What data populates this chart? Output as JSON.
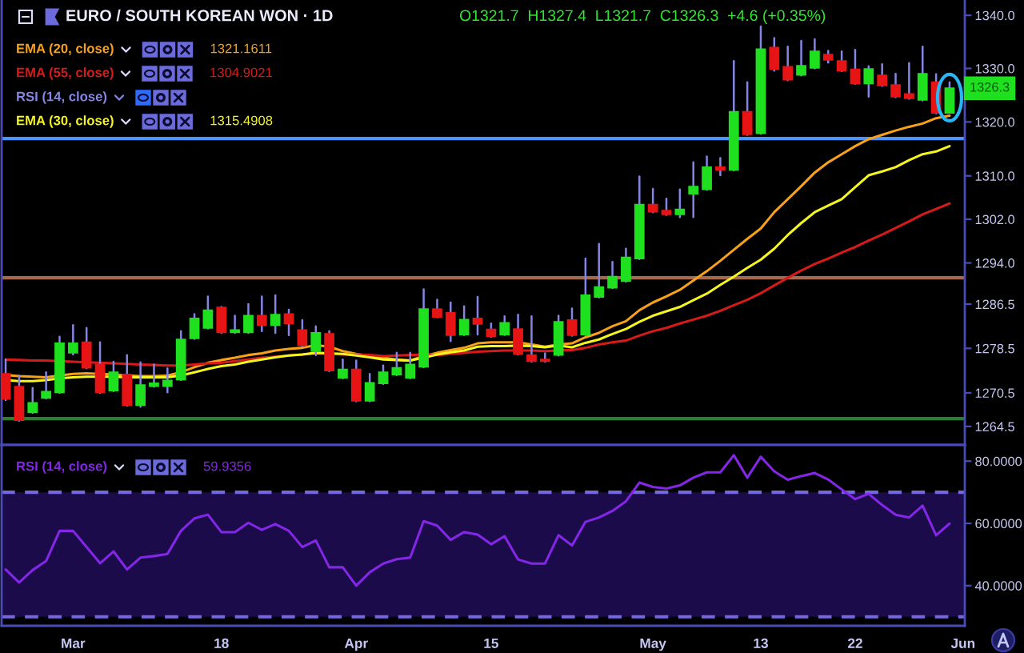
{
  "chart_data": [
    {
      "type": "candlestick",
      "title": "EURO / SOUTH KOREAN WON · 1D",
      "subtitle": "O1321.7  H1327.4  L1321.7  C1326.3  +4.6 (+0.35%)",
      "categories": [
        null,
        null,
        null,
        null,
        null,
        null,
        null,
        null,
        null,
        null,
        null,
        null,
        null,
        null,
        null,
        null,
        null,
        null,
        null,
        null,
        null,
        null,
        null,
        null,
        null,
        null,
        null,
        null,
        null,
        null,
        null,
        null,
        null,
        null,
        null,
        null,
        null,
        null,
        null,
        null,
        null,
        null,
        null,
        null,
        null,
        null,
        null,
        null,
        null,
        null,
        null,
        null,
        null,
        null,
        null,
        null,
        null,
        null,
        null,
        null,
        null,
        null,
        null,
        null,
        null,
        null,
        null,
        null,
        null,
        null,
        null,
        null
      ],
      "ohlc": [
        [
          1273.9,
          1276.5,
          1269.2,
          1269.4
        ],
        [
          1271.6,
          1273.6,
          1265.5,
          1265.6
        ],
        [
          1267.0,
          1271.4,
          1266.9,
          1268.7
        ],
        [
          1269.6,
          1274.2,
          1269.5,
          1270.7
        ],
        [
          1270.6,
          1280.6,
          1270.5,
          1279.4
        ],
        [
          1277.7,
          1282.7,
          1277.4,
          1279.4
        ],
        [
          1279.6,
          1282.2,
          1274.9,
          1275.0
        ],
        [
          1275.6,
          1279.6,
          1270.5,
          1270.6
        ],
        [
          1270.9,
          1276.1,
          1270.8,
          1274.2
        ],
        [
          1273.8,
          1277.3,
          1268.2,
          1268.3
        ],
        [
          1268.3,
          1276.0,
          1268.0,
          1271.9
        ],
        [
          1271.7,
          1275.6,
          1271.6,
          1272.2
        ],
        [
          1271.7,
          1274.9,
          1270.6,
          1272.7
        ],
        [
          1272.9,
          1281.6,
          1272.8,
          1280.1
        ],
        [
          1280.3,
          1284.7,
          1280.2,
          1283.9
        ],
        [
          1282.2,
          1287.9,
          1282.1,
          1285.4
        ],
        [
          1285.9,
          1286.0,
          1281.3,
          1281.4
        ],
        [
          1281.4,
          1284.4,
          1281.3,
          1281.8
        ],
        [
          1281.4,
          1286.5,
          1281.3,
          1284.4
        ],
        [
          1284.4,
          1287.9,
          1281.6,
          1282.7
        ],
        [
          1282.7,
          1288.1,
          1281.3,
          1284.6
        ],
        [
          1284.7,
          1285.5,
          1280.9,
          1283.0
        ],
        [
          1281.8,
          1283.6,
          1279.0,
          1279.1
        ],
        [
          1278.0,
          1282.5,
          1277.3,
          1281.3
        ],
        [
          1281.1,
          1281.6,
          1274.4,
          1274.5
        ],
        [
          1273.2,
          1276.5,
          1273.1,
          1274.7
        ],
        [
          1274.7,
          1276.3,
          1269.0,
          1269.1
        ],
        [
          1269.1,
          1273.9,
          1269.0,
          1272.3
        ],
        [
          1272.2,
          1275.4,
          1272.1,
          1274.2
        ],
        [
          1273.8,
          1277.7,
          1273.7,
          1275.0
        ],
        [
          1273.2,
          1277.7,
          1273.1,
          1275.6
        ],
        [
          1275.2,
          1289.2,
          1275.1,
          1285.6
        ],
        [
          1285.6,
          1287.3,
          1284.1,
          1284.2
        ],
        [
          1284.9,
          1286.8,
          1279.8,
          1280.9
        ],
        [
          1281.0,
          1286.1,
          1280.9,
          1283.7
        ],
        [
          1283.9,
          1287.8,
          1281.0,
          1282.9
        ],
        [
          1281.9,
          1283.0,
          1280.6,
          1280.7
        ],
        [
          1281.0,
          1284.3,
          1280.9,
          1283.1
        ],
        [
          1282.0,
          1284.6,
          1277.4,
          1277.5
        ],
        [
          1277.3,
          1284.3,
          1276.1,
          1276.2
        ],
        [
          1276.5,
          1277.6,
          1276.1,
          1276.2
        ],
        [
          1277.3,
          1284.4,
          1277.2,
          1283.3
        ],
        [
          1283.6,
          1285.7,
          1280.8,
          1280.9
        ],
        [
          1281.0,
          1294.8,
          1280.9,
          1288.1
        ],
        [
          1287.8,
          1297.5,
          1287.7,
          1289.6
        ],
        [
          1289.5,
          1294.2,
          1289.4,
          1291.5
        ],
        [
          1290.7,
          1296.6,
          1290.6,
          1295.0
        ],
        [
          1294.8,
          1309.9,
          1294.7,
          1304.7
        ],
        [
          1304.7,
          1307.6,
          1303.3,
          1303.4
        ],
        [
          1303.6,
          1305.8,
          1302.8,
          1302.9
        ],
        [
          1302.9,
          1307.5,
          1302.4,
          1303.8
        ],
        [
          1306.7,
          1312.5,
          1302.4,
          1308.0
        ],
        [
          1307.5,
          1313.6,
          1307.4,
          1311.6
        ],
        [
          1311.6,
          1313.3,
          1310.1,
          1311.1
        ],
        [
          1311.1,
          1331.4,
          1311.0,
          1321.9
        ],
        [
          1321.9,
          1327.4,
          1317.6,
          1317.7
        ],
        [
          1317.9,
          1337.9,
          1317.8,
          1333.6
        ],
        [
          1333.9,
          1335.7,
          1329.6,
          1329.9
        ],
        [
          1330.3,
          1334.1,
          1327.8,
          1327.9
        ],
        [
          1328.8,
          1335.2,
          1328.7,
          1330.5
        ],
        [
          1330.1,
          1335.5,
          1330.0,
          1333.2
        ],
        [
          1332.6,
          1333.3,
          1331.1,
          1331.6
        ],
        [
          1331.4,
          1333.2,
          1329.5,
          1329.6
        ],
        [
          1329.8,
          1333.5,
          1327.1,
          1327.2
        ],
        [
          1327.2,
          1330.4,
          1324.7,
          1329.9
        ],
        [
          1328.7,
          1330.8,
          1326.7,
          1326.8
        ],
        [
          1326.9,
          1329.0,
          1324.6,
          1324.7
        ],
        [
          1325.2,
          1331.0,
          1324.3,
          1324.4
        ],
        [
          1324.1,
          1334.1,
          1324.0,
          1329.0
        ],
        [
          1327.4,
          1328.9,
          1321.6,
          1321.7
        ],
        [
          1321.7,
          1327.4,
          1321.7,
          1326.3
        ],
        null
      ],
      "color": "#8585e6",
      "colors": [
        "#e61414",
        "#e61414",
        "#1fe01f",
        "#1fe01f",
        "#1fe01f",
        "#1fe01f",
        "#e61414",
        "#e61414",
        "#1fe01f",
        "#e61414",
        "#1fe01f",
        "#1fe01f",
        "#1fe01f",
        "#1fe01f",
        "#1fe01f",
        "#1fe01f",
        "#e61414",
        "#1fe01f",
        "#1fe01f",
        "#e61414",
        "#1fe01f",
        "#e61414",
        "#e61414",
        "#1fe01f",
        "#e61414",
        "#1fe01f",
        "#e61414",
        "#1fe01f",
        "#1fe01f",
        "#1fe01f",
        "#1fe01f",
        "#1fe01f",
        "#e61414",
        "#e61414",
        "#1fe01f",
        "#e61414",
        "#e61414",
        "#1fe01f",
        "#e61414",
        "#e61414",
        "#e61414",
        "#1fe01f",
        "#e61414",
        "#1fe01f",
        "#1fe01f",
        "#1fe01f",
        "#1fe01f",
        "#1fe01f",
        "#e61414",
        "#e61414",
        "#1fe01f",
        "#1fe01f",
        "#1fe01f",
        "#e61414",
        "#1fe01f",
        "#e61414",
        "#1fe01f",
        "#e61414",
        "#e61414",
        "#1fe01f",
        "#1fe01f",
        "#e61414",
        "#e61414",
        "#e61414",
        "#1fe01f",
        "#e61414",
        "#e61414",
        "#e61414",
        "#1fe01f",
        "#e61414",
        "#1fe01f",
        null
      ],
      "series": [
        {
          "name": "EMA (20, close)",
          "type": "line",
          "color": "#f7a11a",
          "values": [
            1273.7,
            1273.5,
            1273.4,
            1273.3,
            1273.6,
            1273.9,
            1274.0,
            1273.9,
            1273.8,
            1273.6,
            1273.5,
            1273.5,
            1273.6,
            1274.2,
            1275.1,
            1275.9,
            1276.4,
            1276.8,
            1277.3,
            1277.6,
            1278.1,
            1278.4,
            1278.6,
            1279.1,
            1278.8,
            1278.0,
            1277.5,
            1277.1,
            1276.8,
            1276.5,
            1276.3,
            1277.1,
            1277.7,
            1278.2,
            1278.6,
            1279.4,
            1279.6,
            1279.6,
            1279.6,
            1279.2,
            1278.8,
            1279.2,
            1279.4,
            1280.5,
            1281.3,
            1282.5,
            1283.4,
            1285.4,
            1286.8,
            1287.9,
            1289.1,
            1290.8,
            1292.5,
            1294.4,
            1296.4,
            1298.4,
            1300.3,
            1303.3,
            1305.7,
            1308.1,
            1310.6,
            1312.5,
            1314.0,
            1315.5,
            1316.8,
            1317.6,
            1318.4,
            1319.1,
            1319.7,
            1320.7,
            1321.1611,
            null
          ]
        },
        {
          "name": "EMA (55, close)",
          "type": "line",
          "color": "#d61a1a",
          "values": [
            1276.5,
            1276.4,
            1276.3,
            1276.3,
            1276.2,
            1276.1,
            1276.0,
            1275.9,
            1275.8,
            1275.7,
            1275.6,
            1275.5,
            1275.4,
            1275.4,
            1275.6,
            1275.8,
            1275.9,
            1276.2,
            1276.5,
            1276.8,
            1277.0,
            1277.2,
            1277.4,
            1277.6,
            1277.5,
            1277.4,
            1277.4,
            1277.3,
            1277.1,
            1277.2,
            1277.3,
            1277.4,
            1277.3,
            1277.5,
            1277.7,
            1277.9,
            1278.0,
            1278.1,
            1278.1,
            1278.1,
            1278.0,
            1278.1,
            1278.2,
            1278.6,
            1279.2,
            1279.6,
            1279.9,
            1280.8,
            1281.6,
            1282.2,
            1283.0,
            1283.7,
            1284.4,
            1285.3,
            1286.3,
            1287.3,
            1288.5,
            1289.9,
            1291.3,
            1292.6,
            1293.8,
            1294.8,
            1295.9,
            1296.9,
            1298.1,
            1299.2,
            1300.4,
            1301.6,
            1302.9,
            1303.9,
            1304.9021,
            null
          ]
        },
        {
          "name": "RSI (14, close)",
          "values": [
            null,
            null,
            null,
            null,
            null,
            null,
            null,
            null,
            null,
            null,
            null,
            null,
            null,
            null,
            null,
            null,
            null,
            null,
            null,
            null,
            null,
            null,
            null,
            null,
            null,
            null,
            null,
            null,
            null,
            null,
            null,
            null,
            null,
            null,
            null,
            null,
            null,
            null,
            null,
            null,
            null,
            null,
            null,
            null,
            null,
            null,
            null,
            null,
            null,
            null,
            null,
            null,
            null,
            null,
            null,
            null,
            null,
            null,
            null,
            null,
            null,
            null,
            null,
            null,
            null,
            null,
            null,
            null,
            null,
            null,
            null,
            null
          ]
        },
        {
          "name": "EMA (30, close)",
          "type": "line",
          "color": "#f5f51f",
          "values": [
            1272.8,
            1272.6,
            1272.6,
            1272.8,
            1273.1,
            1273.3,
            1273.4,
            1273.4,
            1273.4,
            1273.3,
            1273.3,
            1273.3,
            1273.3,
            1273.6,
            1274.2,
            1274.8,
            1275.3,
            1275.6,
            1276.1,
            1276.5,
            1276.9,
            1277.2,
            1277.4,
            1277.7,
            1277.6,
            1277.5,
            1277.2,
            1276.9,
            1276.5,
            1276.4,
            1276.3,
            1276.8,
            1277.4,
            1277.8,
            1278.1,
            1278.8,
            1278.9,
            1278.9,
            1279.0,
            1278.9,
            1278.7,
            1279.0,
            1278.7,
            1279.5,
            1280.1,
            1281.1,
            1282.0,
            1283.3,
            1284.4,
            1285.2,
            1286.0,
            1287.2,
            1288.4,
            1290.0,
            1291.5,
            1293.1,
            1294.6,
            1296.6,
            1299.1,
            1301.3,
            1303.3,
            1304.5,
            1305.7,
            1307.9,
            1310.1,
            1310.8,
            1311.6,
            1312.9,
            1314.0,
            1314.5,
            1315.4908,
            null
          ]
        }
      ],
      "annotations": [
        "1321.1611",
        "1304.9021",
        "1315.4908",
        {
          "text": "1326.3",
          "y": 1326.3
        }
      ],
      "ref_lines": [
        {
          "axis": "y",
          "value": 1316.9,
          "color": "#4d94ff",
          "line_style": "solid"
        },
        {
          "axis": "y",
          "value": 1291.3,
          "color": "#a5694f",
          "line_style": "solid"
        },
        {
          "axis": "y",
          "value": 1265.9,
          "color": "#2f7d32",
          "line_style": "solid"
        }
      ],
      "ylim": [
        1261.2,
        1342.9
      ],
      "yticks": [
        1264.5,
        1270.5,
        1278.5,
        1286.5,
        {
          "value": 1294,
          "label": "1294.0"
        },
        {
          "value": 1302,
          "label": "1302.0"
        },
        {
          "value": 1310,
          "label": "1310.0"
        },
        {
          "value": 1320,
          "label": "1320.0"
        },
        {
          "value": 1330,
          "label": "1330.0"
        },
        {
          "value": 1340,
          "label": "1340.0"
        }
      ],
      "log": "y",
      "tick_labels": "y"
    },
    {
      "type": "line",
      "categories": [
        null,
        null,
        null,
        null,
        null,
        "Mar",
        null,
        null,
        null,
        null,
        null,
        null,
        null,
        null,
        null,
        null,
        "18",
        null,
        null,
        null,
        null,
        null,
        null,
        null,
        null,
        null,
        "Apr",
        null,
        null,
        null,
        null,
        null,
        null,
        null,
        null,
        null,
        "15",
        null,
        null,
        null,
        null,
        null,
        null,
        null,
        null,
        null,
        null,
        null,
        "May",
        null,
        null,
        null,
        null,
        null,
        null,
        null,
        "13",
        null,
        null,
        null,
        null,
        null,
        null,
        "22",
        null,
        null,
        null,
        null,
        null,
        null,
        null,
        "Jun"
      ],
      "series": [
        {
          "name": "RSI (14, close)",
          "color": "#8426e6",
          "values": [
            45.2,
            41.0,
            45.0,
            47.9,
            57.6,
            57.6,
            52.4,
            47.2,
            51.0,
            45.2,
            49.0,
            49.5,
            50.2,
            57.6,
            61.6,
            62.8,
            57.2,
            57.2,
            60.2,
            57.9,
            59.8,
            57.6,
            52.4,
            54.5,
            45.9,
            45.9,
            40.0,
            44.3,
            47.1,
            48.5,
            49.0,
            60.7,
            59.3,
            54.7,
            57.2,
            56.4,
            53.3,
            55.9,
            48.4,
            47.1,
            47.1,
            56.2,
            52.9,
            60.5,
            61.9,
            64.0,
            67.1,
            73.1,
            71.7,
            71.2,
            72.2,
            74.7,
            76.4,
            76.4,
            81.9,
            74.7,
            81.4,
            76.7,
            74.0,
            75.2,
            76.2,
            74.1,
            70.9,
            67.8,
            69.5,
            65.9,
            62.8,
            61.9,
            65.7,
            56.2,
            59.9356,
            null
          ]
        }
      ],
      "annotations": [
        "59.9356"
      ],
      "bands": [
        {
          "axis": "y",
          "from": 30,
          "to": 70,
          "color": "#1b0b4a"
        }
      ],
      "ref_lines": [
        {
          "axis": "y",
          "value": 70,
          "color": "#7467e0",
          "line_style": "dashed"
        },
        {
          "axis": "y",
          "value": 30,
          "color": "#7467e0",
          "line_style": "dashed"
        }
      ],
      "ylim": [
        27.1,
        85.2
      ],
      "yticks": [
        {
          "value": 40,
          "label": "40.0000"
        },
        {
          "value": 60,
          "label": "60.0000"
        },
        {
          "value": 80,
          "label": "80.0000"
        }
      ]
    }
  ]
}
